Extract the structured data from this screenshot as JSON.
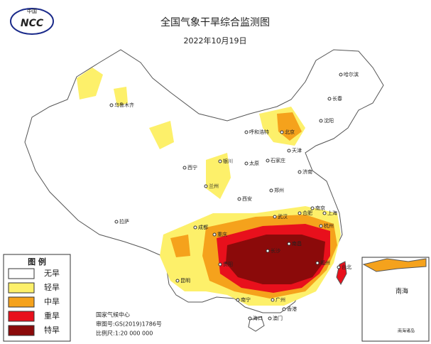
{
  "header": {
    "title": "全国气象干旱综合监测图",
    "date": "2022年10月19日"
  },
  "logo": {
    "org": "中国",
    "text": "NCC"
  },
  "legend": {
    "title": "图 例",
    "items": [
      {
        "label": "无旱",
        "color": "#ffffff"
      },
      {
        "label": "轻旱",
        "color": "#fdf06a"
      },
      {
        "label": "中旱",
        "color": "#f5a21c"
      },
      {
        "label": "重旱",
        "color": "#e8101c"
      },
      {
        "label": "特旱",
        "color": "#8b0a0a"
      }
    ]
  },
  "cities": [
    "哈尔滨",
    "长春",
    "沈阳",
    "乌鲁木齐",
    "呼和浩特",
    "北京",
    "天津",
    "石家庄",
    "太原",
    "银川",
    "西宁",
    "兰州",
    "济南",
    "郑州",
    "西安",
    "拉萨",
    "成都",
    "重庆",
    "武汉",
    "合肥",
    "南京",
    "上海",
    "杭州",
    "长沙",
    "南昌",
    "贵阳",
    "昆明",
    "福州",
    "台北",
    "广州",
    "南宁",
    "香港",
    "澳门",
    "海口"
  ],
  "credits": [
    "国家气候中心",
    "审图号:GS(2019)1786号",
    "比例尺:1:20 000 000"
  ],
  "inset": {
    "title": "南海",
    "caption": "南海诸岛"
  }
}
